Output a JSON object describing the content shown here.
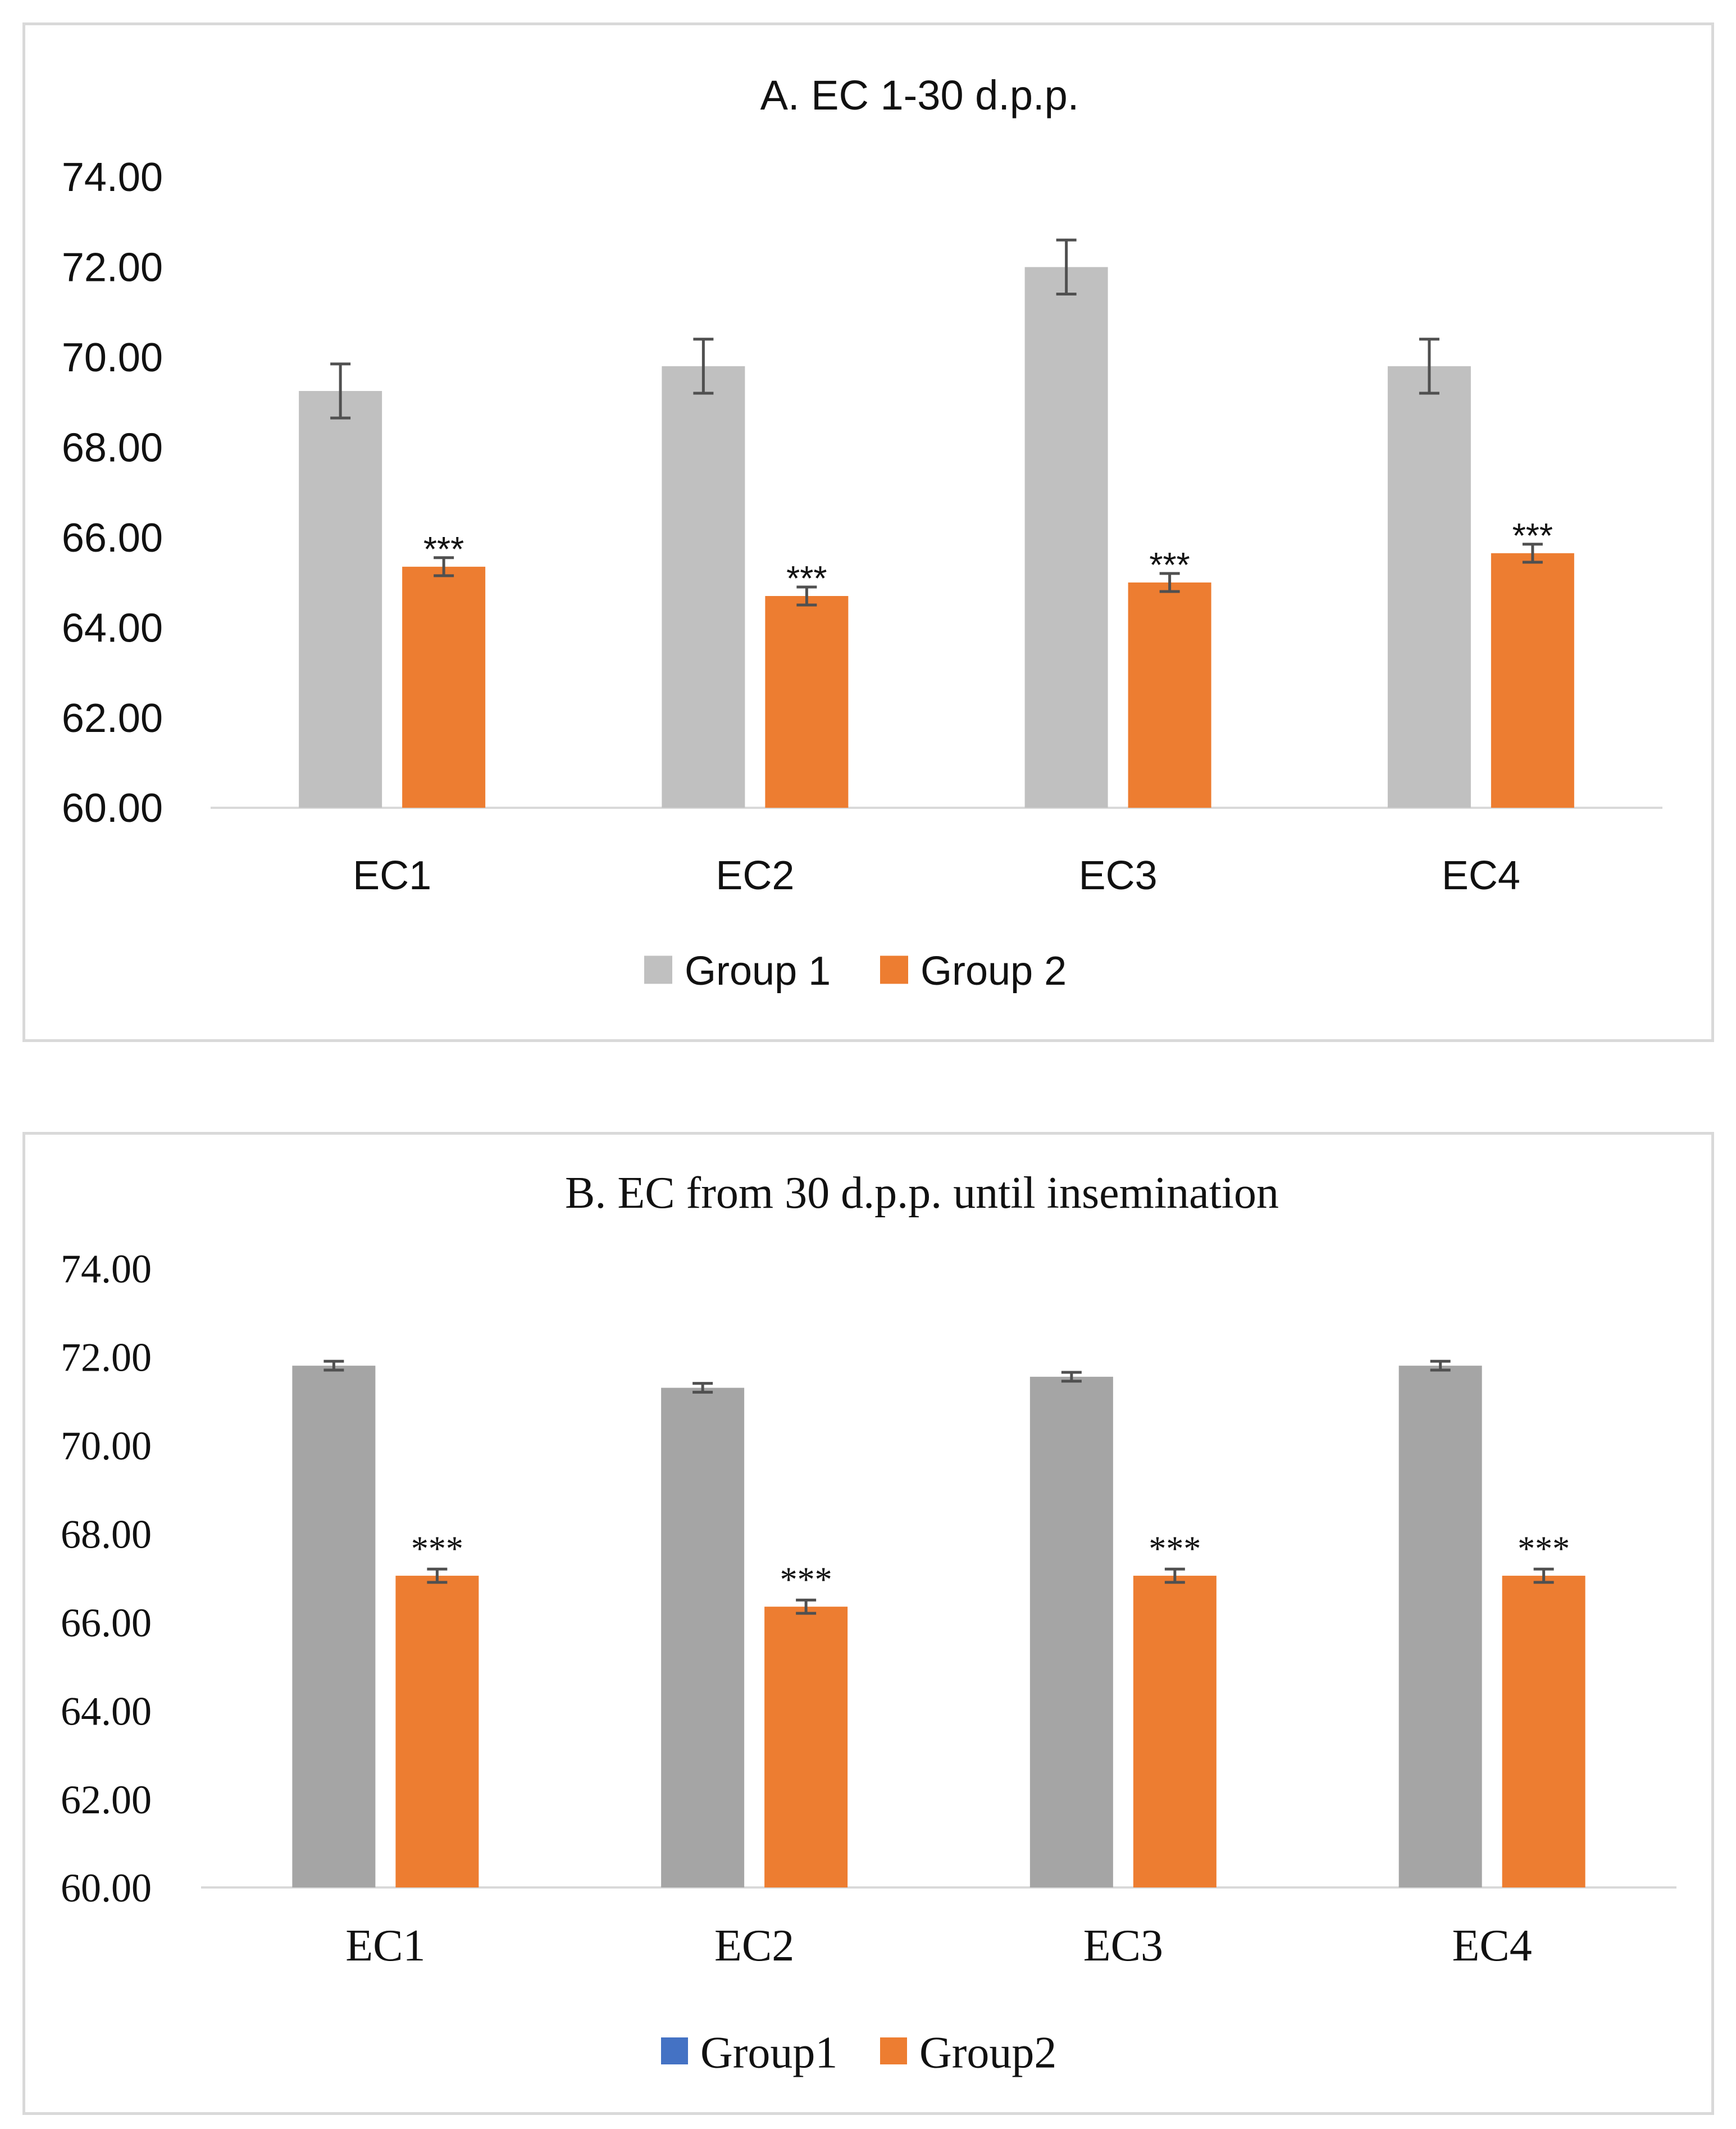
{
  "colors": {
    "axis": "#d9d9d9",
    "error_bar": "#505050",
    "text": "#111111"
  },
  "chart_data": [
    {
      "type": "bar",
      "title": "A. EC 1-30 d.p.p.",
      "xlabel": "",
      "ylabel": "",
      "ylim": [
        60,
        74
      ],
      "y_ticks": [
        "60.00",
        "62.00",
        "64.00",
        "66.00",
        "68.00",
        "70.00",
        "72.00",
        "74.00"
      ],
      "categories": [
        "EC1",
        "EC2",
        "EC3",
        "EC4"
      ],
      "series": [
        {
          "name": "Group 1",
          "color": "#c0c0c0",
          "legend_color": "#c0c0c0",
          "values": [
            69.25,
            69.8,
            72.0,
            69.8
          ],
          "errors": [
            0.6,
            0.6,
            0.6,
            0.6
          ],
          "annotations": [
            "",
            "",
            "",
            ""
          ]
        },
        {
          "name": "Group 2",
          "color": "#ed7d31",
          "legend_color": "#ed7d31",
          "values": [
            65.35,
            64.7,
            65.0,
            65.65
          ],
          "errors": [
            0.2,
            0.2,
            0.2,
            0.2
          ],
          "annotations": [
            "***",
            "***",
            "***",
            "***"
          ]
        }
      ],
      "legend": "bottom-center",
      "grid": false
    },
    {
      "type": "bar",
      "title": "B. EC from 30 d.p.p. until insemination",
      "xlabel": "",
      "ylabel": "",
      "ylim": [
        60,
        74
      ],
      "y_ticks": [
        "60.00",
        "62.00",
        "64.00",
        "66.00",
        "68.00",
        "70.00",
        "72.00",
        "74.00"
      ],
      "categories": [
        "EC1",
        "EC2",
        "EC3",
        "EC4"
      ],
      "series": [
        {
          "name": "Group1",
          "color": "#a5a5a5",
          "legend_color": "#4472c4",
          "values": [
            71.8,
            71.3,
            71.55,
            71.8
          ],
          "errors": [
            0.1,
            0.1,
            0.1,
            0.1
          ],
          "annotations": [
            "",
            "",
            "",
            ""
          ]
        },
        {
          "name": "Group2",
          "color": "#ed7d31",
          "legend_color": "#ed7d31",
          "values": [
            67.05,
            66.35,
            67.05,
            67.05
          ],
          "errors": [
            0.15,
            0.15,
            0.15,
            0.15
          ],
          "annotations": [
            "***",
            "***",
            "***",
            "***"
          ]
        }
      ],
      "legend": "bottom-center",
      "grid": false
    }
  ]
}
